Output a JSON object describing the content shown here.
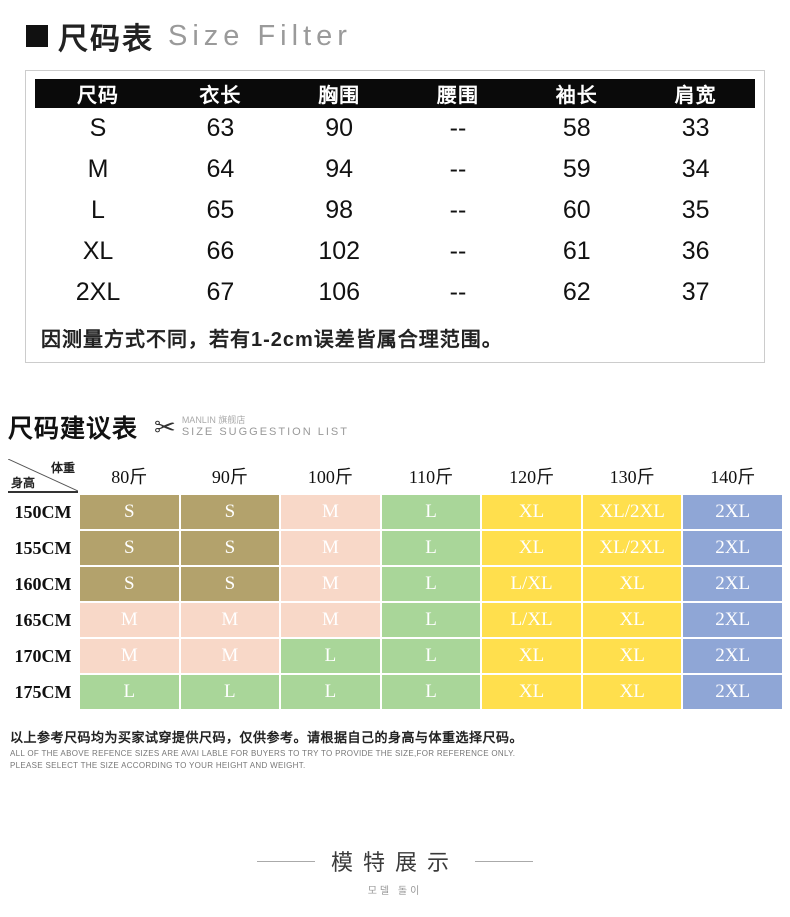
{
  "size_table": {
    "title_zh": "尺码表",
    "title_en": "Size Filter",
    "columns": [
      "尺码",
      "衣长",
      "胸围",
      "腰围",
      "袖长",
      "肩宽"
    ],
    "rows": [
      {
        "size": "S",
        "values": [
          "63",
          "90",
          "--",
          "58",
          "33"
        ]
      },
      {
        "size": "M",
        "values": [
          "64",
          "94",
          "--",
          "59",
          "34"
        ]
      },
      {
        "size": "L",
        "values": [
          "65",
          "98",
          "--",
          "60",
          "35"
        ]
      },
      {
        "size": "XL",
        "values": [
          "66",
          "102",
          "--",
          "61",
          "36"
        ]
      },
      {
        "size": "2XL",
        "values": [
          "67",
          "106",
          "--",
          "62",
          "37"
        ]
      }
    ],
    "note": "因测量方式不同，若有1-2cm误差皆属合理范围。"
  },
  "suggestion": {
    "title_zh": "尺码建议表",
    "scissors_icon": "✂",
    "brand": "MANLIN 旗舰店",
    "subtitle": "SIZE SUGGESTION LIST",
    "corner_top": "体重",
    "corner_bottom": "身高",
    "weights": [
      "80斤",
      "90斤",
      "100斤",
      "110斤",
      "120斤",
      "130斤",
      "140斤"
    ],
    "heights": [
      "150CM",
      "155CM",
      "160CM",
      "165CM",
      "170CM",
      "175CM"
    ],
    "palette": {
      "olive": "#b3a26c",
      "pink": "#f8d8c8",
      "green": "#a9d699",
      "yellow": "#ffdf4d",
      "blue": "#8fa6d6"
    },
    "matrix": [
      [
        {
          "label": "S",
          "color": "olive"
        },
        {
          "label": "S",
          "color": "olive"
        },
        {
          "label": "M",
          "color": "pink"
        },
        {
          "label": "L",
          "color": "green"
        },
        {
          "label": "XL",
          "color": "yellow"
        },
        {
          "label": "XL/2XL",
          "color": "yellow"
        },
        {
          "label": "2XL",
          "color": "blue"
        }
      ],
      [
        {
          "label": "S",
          "color": "olive"
        },
        {
          "label": "S",
          "color": "olive"
        },
        {
          "label": "M",
          "color": "pink"
        },
        {
          "label": "L",
          "color": "green"
        },
        {
          "label": "XL",
          "color": "yellow"
        },
        {
          "label": "XL/2XL",
          "color": "yellow"
        },
        {
          "label": "2XL",
          "color": "blue"
        }
      ],
      [
        {
          "label": "S",
          "color": "olive"
        },
        {
          "label": "S",
          "color": "olive"
        },
        {
          "label": "M",
          "color": "pink"
        },
        {
          "label": "L",
          "color": "green"
        },
        {
          "label": "L/XL",
          "color": "yellow"
        },
        {
          "label": "XL",
          "color": "yellow"
        },
        {
          "label": "2XL",
          "color": "blue"
        }
      ],
      [
        {
          "label": "M",
          "color": "pink"
        },
        {
          "label": "M",
          "color": "pink"
        },
        {
          "label": "M",
          "color": "pink"
        },
        {
          "label": "L",
          "color": "green"
        },
        {
          "label": "L/XL",
          "color": "yellow"
        },
        {
          "label": "XL",
          "color": "yellow"
        },
        {
          "label": "2XL",
          "color": "blue"
        }
      ],
      [
        {
          "label": "M",
          "color": "pink"
        },
        {
          "label": "M",
          "color": "pink"
        },
        {
          "label": "L",
          "color": "green"
        },
        {
          "label": "L",
          "color": "green"
        },
        {
          "label": "XL",
          "color": "yellow"
        },
        {
          "label": "XL",
          "color": "yellow"
        },
        {
          "label": "2XL",
          "color": "blue"
        }
      ],
      [
        {
          "label": "L",
          "color": "green"
        },
        {
          "label": "L",
          "color": "green"
        },
        {
          "label": "L",
          "color": "green"
        },
        {
          "label": "L",
          "color": "green"
        },
        {
          "label": "XL",
          "color": "yellow"
        },
        {
          "label": "XL",
          "color": "yellow"
        },
        {
          "label": "2XL",
          "color": "blue"
        }
      ]
    ],
    "note_zh": "以上参考尺码均为买家试穿提供尺码，仅供参考。请根据自己的身高与体重选择尺码。",
    "note_en_1": "ALL OF THE ABOVE REFENCE SIZES ARE AVAI LABLE FOR BUYERS TO TRY TO PROVIDE THE SIZE,FOR REFERENCE ONLY.",
    "note_en_2": "PLEASE SELECT THE SIZE ACCORDING TO YOUR HEIGHT AND WEIGHT."
  },
  "footer": {
    "title": "模特展示",
    "subtitle": "모델 돌이"
  }
}
